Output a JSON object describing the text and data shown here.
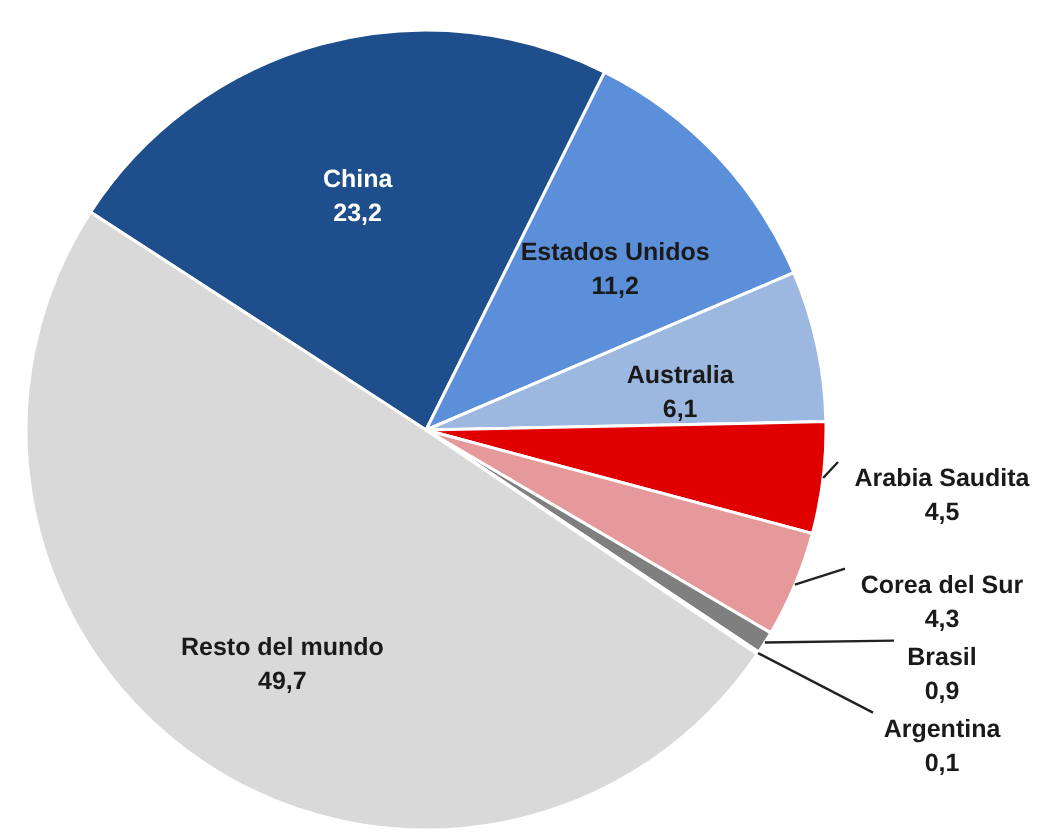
{
  "chart_data": {
    "type": "pie",
    "categories": [
      "China",
      "Estados Unidos",
      "Australia",
      "Arabia Saudita",
      "Corea del Sur",
      "Brasil",
      "Argentina",
      "Resto del mundo"
    ],
    "values": [
      23.2,
      11.2,
      6.1,
      4.5,
      4.3,
      0.9,
      0.1,
      49.7
    ],
    "value_labels": [
      "23,2",
      "11,2",
      "6,1",
      "4,5",
      "4,3",
      "0,9",
      "0,1",
      "49,7"
    ],
    "colors": [
      "#1f4e8c",
      "#5b8fd9",
      "#9db8e0",
      "#e00000",
      "#e6999b",
      "#7f7f7f",
      "#a6a6a6",
      "#d9d9d9"
    ]
  }
}
